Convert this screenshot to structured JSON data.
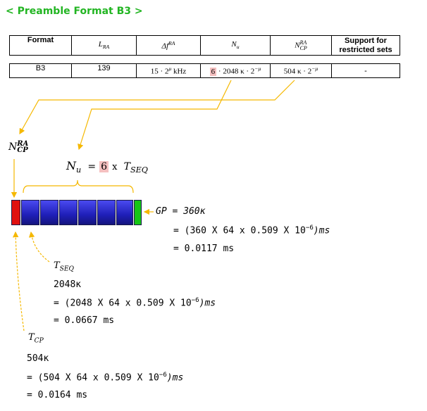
{
  "heading": "< Preamble Format B3 >",
  "table": {
    "header": {
      "format": "Format",
      "lra_main": "L",
      "lra_sub": "RA",
      "df_main": "Δf",
      "df_sup": "RA",
      "nu_main": "N",
      "nu_sub": "u",
      "ncp_main": "N",
      "ncp_sup": "RA",
      "ncp_sub": "CP",
      "support_line1": "Support for",
      "support_line2": "restricted sets"
    },
    "row": {
      "format": "B3",
      "lra": "139",
      "df": "15 · 2",
      "df_exp": "μ",
      "df_unit": " kHz",
      "nu_hl": "6",
      "nu_rest": " · 2048 κ · 2",
      "nu_exp": "−μ",
      "ncp": "504 κ · 2",
      "ncp_exp": "−μ",
      "support": "-"
    }
  },
  "diagram": {
    "ncp_label_main": "N",
    "ncp_label_sup": "RA",
    "ncp_label_sub": "CP",
    "nu_eq_main": "N",
    "nu_eq_sub": "u",
    "nu_eq_equals": "=",
    "nu_eq_hl": "6",
    "nu_eq_times": "x",
    "nu_eq_tseq_main": "T",
    "nu_eq_tseq_sub": "SEQ",
    "gp_line1": "GP = 360κ",
    "gp_line2": "= (360 X 64 x 0.509 X 10",
    "gp_line2_exp": "−6",
    "gp_line2_end": ")ms",
    "gp_line3": "= 0.0117 ms",
    "tseq_label_main": "T",
    "tseq_label_sub": "SEQ",
    "tseq_line1": "2048κ",
    "tseq_line2": "= (2048 X 64 x 0.509 X 10",
    "tseq_line2_exp": "−6",
    "tseq_line2_end": ")ms",
    "tseq_line3": "= 0.0667 ms",
    "tcp_label_main": "T",
    "tcp_label_sub": "CP",
    "tcp_line1": "504κ",
    "tcp_line2": "= (504 X 64 x 0.509 X 10",
    "tcp_line2_exp": "−6",
    "tcp_line2_end": ")ms",
    "tcp_line3": "= 0.0164 ms"
  },
  "colors": {
    "heading": "#22b522",
    "arrow": "#f5b800",
    "cp_block": "#e01010",
    "gp_block": "#16c516",
    "seq_block": "#2424c8",
    "highlight": "#f5c0c0"
  }
}
